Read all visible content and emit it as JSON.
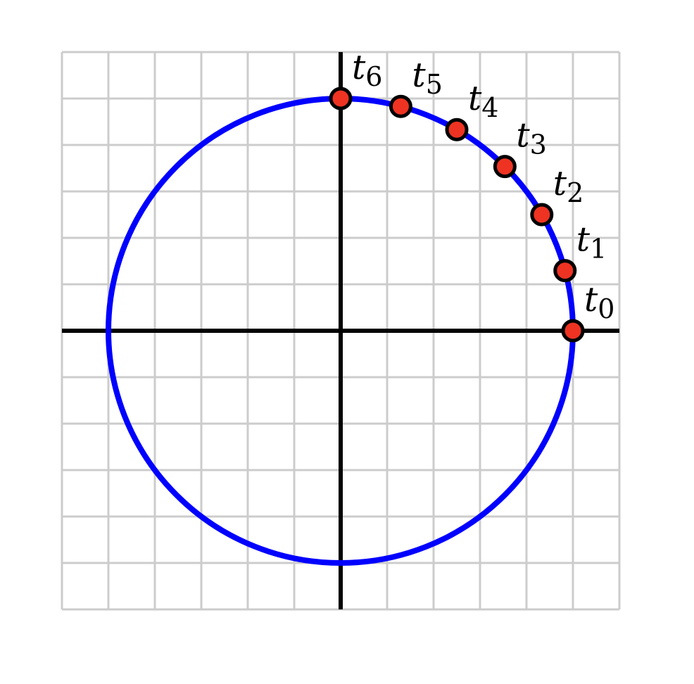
{
  "diagram": {
    "grid": {
      "x_range": [
        -6,
        6
      ],
      "y_range": [
        -6,
        6
      ],
      "step": 1
    },
    "axes": {
      "x": true,
      "y": true
    },
    "circle": {
      "center": [
        0,
        0
      ],
      "radius": 5,
      "color": "#0000ff"
    },
    "point_color": "#ee3322",
    "points": [
      {
        "label_main": "t",
        "label_sub": "0",
        "angle_deg": 0
      },
      {
        "label_main": "t",
        "label_sub": "1",
        "angle_deg": 15
      },
      {
        "label_main": "t",
        "label_sub": "2",
        "angle_deg": 30
      },
      {
        "label_main": "t",
        "label_sub": "3",
        "angle_deg": 45
      },
      {
        "label_main": "t",
        "label_sub": "4",
        "angle_deg": 60
      },
      {
        "label_main": "t",
        "label_sub": "5",
        "angle_deg": 75
      },
      {
        "label_main": "t",
        "label_sub": "6",
        "angle_deg": 90
      }
    ]
  }
}
